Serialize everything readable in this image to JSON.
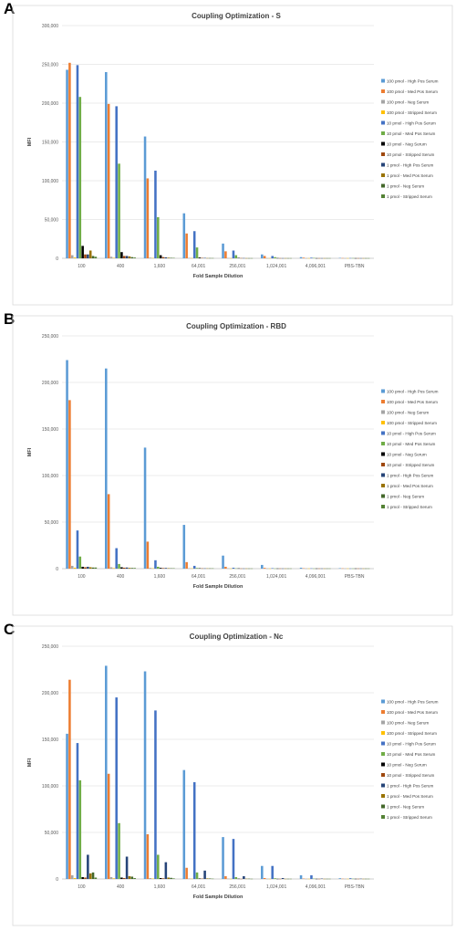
{
  "panels": [
    {
      "letter": "A",
      "chart_data": {
        "type": "bar",
        "title": "Coupling Optimization - S",
        "xlabel": "Fold Sample Dilution",
        "ylabel": "MFI",
        "ylim": [
          0,
          300000
        ],
        "ytick_labels": [
          "0",
          "50,000",
          "100,000",
          "150,000",
          "200,000",
          "250,000",
          "300,000"
        ],
        "grid": true,
        "legend_position": "right",
        "categories": [
          "100",
          "400",
          "1,600",
          "64,001",
          "256,001",
          "1,024,001",
          "4,096,001",
          "PBS-TBN"
        ],
        "series": [
          {
            "name": "100 pmol - High Pos Serum",
            "color": "#5b9bd5",
            "values": [
              243000,
              240000,
              157000,
              58000,
              19000,
              5000,
              1500,
              500
            ]
          },
          {
            "name": "100 pmol - Med Pos Serum",
            "color": "#ed7d31",
            "values": [
              252000,
              199000,
              103000,
              32000,
              9000,
              3000,
              800,
              300
            ]
          },
          {
            "name": "100 pmol - Neg Serum",
            "color": "#a5a5a5",
            "values": [
              4000,
              2000,
              800,
              400,
              300,
              200,
              200,
              200
            ]
          },
          {
            "name": "100 pmol - Stripped Serum",
            "color": "#ffc000",
            "values": [
              1000,
              600,
              400,
              300,
              200,
              200,
              200,
              200
            ]
          },
          {
            "name": "10 pmol - High Pos Serum",
            "color": "#4472c4",
            "values": [
              249000,
              196000,
              113000,
              35000,
              10000,
              3000,
              800,
              300
            ]
          },
          {
            "name": "10 pmol - Med Pos Serum",
            "color": "#70ad47",
            "values": [
              208000,
              122000,
              53000,
              14000,
              4000,
              1500,
              500,
              300
            ]
          },
          {
            "name": "10 pmol - Neg Serum",
            "color": "#000000",
            "values": [
              16000,
              8000,
              4000,
              1000,
              500,
              300,
              200,
              200
            ]
          },
          {
            "name": "10 pmol - Stripped Serum",
            "color": "#9e480e",
            "values": [
              5000,
              3000,
              1500,
              500,
              300,
              200,
              200,
              200
            ]
          },
          {
            "name": "1 pmol - High Pos Serum",
            "color": "#264478",
            "values": [
              5000,
              3000,
              1200,
              500,
              300,
              200,
              200,
              200
            ]
          },
          {
            "name": "1 pmol - Med Pos Serum",
            "color": "#997300",
            "values": [
              10000,
              2500,
              800,
              300,
              200,
              200,
              200,
              200
            ]
          },
          {
            "name": "1 pmol - Neg Serum",
            "color": "#43682b",
            "values": [
              3000,
              1500,
              600,
              300,
              200,
              200,
              200,
              200
            ]
          },
          {
            "name": "1 pmol - Stripped Serum",
            "color": "#548235",
            "values": [
              2000,
              1000,
              500,
              300,
              200,
              200,
              200,
              200
            ]
          }
        ]
      }
    },
    {
      "letter": "B",
      "chart_data": {
        "type": "bar",
        "title": "Coupling Optimization - RBD",
        "xlabel": "Fold Sample Dilution",
        "ylabel": "MFI",
        "ylim": [
          0,
          250000
        ],
        "ytick_labels": [
          "0",
          "50,000",
          "100,000",
          "150,000",
          "200,000",
          "250,000"
        ],
        "grid": true,
        "legend_position": "right",
        "categories": [
          "100",
          "400",
          "1,600",
          "64,001",
          "256,001",
          "1,024,001",
          "4,096,001",
          "PBS-TBN"
        ],
        "series": [
          {
            "name": "100 pmol - High Pos Serum",
            "color": "#5b9bd5",
            "values": [
              224000,
              215000,
              130000,
              47000,
              14000,
              4000,
              1000,
              500
            ]
          },
          {
            "name": "100 pmol - Med Pos Serum",
            "color": "#ed7d31",
            "values": [
              181000,
              80000,
              29000,
              7000,
              2000,
              800,
              400,
              300
            ]
          },
          {
            "name": "100 pmol - Neg Serum",
            "color": "#a5a5a5",
            "values": [
              3000,
              1500,
              800,
              400,
              300,
              200,
              200,
              200
            ]
          },
          {
            "name": "100 pmol - Stripped Serum",
            "color": "#ffc000",
            "values": [
              1000,
              600,
              400,
              300,
              200,
              200,
              200,
              200
            ]
          },
          {
            "name": "10 pmol - High Pos Serum",
            "color": "#4472c4",
            "values": [
              41000,
              22000,
              9000,
              3000,
              1000,
              500,
              300,
              200
            ]
          },
          {
            "name": "10 pmol - Med Pos Serum",
            "color": "#70ad47",
            "values": [
              13000,
              5000,
              2000,
              700,
              300,
              200,
              200,
              200
            ]
          },
          {
            "name": "10 pmol - Neg Serum",
            "color": "#000000",
            "values": [
              2000,
              1500,
              800,
              400,
              300,
              200,
              200,
              200
            ]
          },
          {
            "name": "10 pmol - Stripped Serum",
            "color": "#9e480e",
            "values": [
              1500,
              1000,
              600,
              300,
              200,
              200,
              200,
              200
            ]
          },
          {
            "name": "1 pmol - High Pos Serum",
            "color": "#264478",
            "values": [
              2000,
              1200,
              700,
              300,
              200,
              200,
              200,
              200
            ]
          },
          {
            "name": "1 pmol - Med Pos Serum",
            "color": "#997300",
            "values": [
              1500,
              800,
              500,
              300,
              200,
              200,
              200,
              200
            ]
          },
          {
            "name": "1 pmol - Neg Serum",
            "color": "#43682b",
            "values": [
              1200,
              700,
              400,
              300,
              200,
              200,
              200,
              200
            ]
          },
          {
            "name": "1 pmol - Stripped Serum",
            "color": "#548235",
            "values": [
              1200,
              700,
              400,
              300,
              200,
              200,
              200,
              200
            ]
          }
        ]
      }
    },
    {
      "letter": "C",
      "chart_data": {
        "type": "bar",
        "title": "Coupling Optimization - Nc",
        "xlabel": "Fold Sample Dilution",
        "ylabel": "MFI",
        "ylim": [
          0,
          250000
        ],
        "ytick_labels": [
          "0",
          "50,000",
          "100,000",
          "150,000",
          "200,000",
          "250,000"
        ],
        "grid": true,
        "legend_position": "right",
        "categories": [
          "100",
          "400",
          "1,600",
          "64,001",
          "256,001",
          "1,024,001",
          "4,096,001",
          "PBS-TBN"
        ],
        "series": [
          {
            "name": "100 pmol - High Pos Serum",
            "color": "#5b9bd5",
            "values": [
              156000,
              229000,
              223000,
              117000,
              45000,
              14000,
              4000,
              800
            ]
          },
          {
            "name": "100 pmol - Med Pos Serum",
            "color": "#ed7d31",
            "values": [
              214000,
              113000,
              48000,
              12000,
              3000,
              1000,
              400,
              300
            ]
          },
          {
            "name": "100 pmol - Neg Serum",
            "color": "#a5a5a5",
            "values": [
              4000,
              2000,
              1000,
              500,
              300,
              200,
              200,
              200
            ]
          },
          {
            "name": "100 pmol - Stripped Serum",
            "color": "#ffc000",
            "values": [
              1000,
              700,
              500,
              300,
              200,
              200,
              200,
              200
            ]
          },
          {
            "name": "10 pmol - High Pos Serum",
            "color": "#4472c4",
            "values": [
              146000,
              195000,
              181000,
              104000,
              43000,
              14000,
              4000,
              800
            ]
          },
          {
            "name": "10 pmol - Med Pos Serum",
            "color": "#70ad47",
            "values": [
              106000,
              60000,
              26000,
              7000,
              2000,
              800,
              400,
              300
            ]
          },
          {
            "name": "10 pmol - Neg Serum",
            "color": "#000000",
            "values": [
              2000,
              1500,
              1000,
              500,
              300,
              200,
              200,
              200
            ]
          },
          {
            "name": "10 pmol - Stripped Serum",
            "color": "#9e480e",
            "values": [
              1500,
              1000,
              700,
              400,
              200,
              200,
              200,
              200
            ]
          },
          {
            "name": "1 pmol - High Pos Serum",
            "color": "#264478",
            "values": [
              26000,
              24000,
              18000,
              9000,
              3000,
              1000,
              400,
              300
            ]
          },
          {
            "name": "1 pmol - Med Pos Serum",
            "color": "#997300",
            "values": [
              6000,
              3000,
              1500,
              600,
              300,
              200,
              200,
              200
            ]
          },
          {
            "name": "1 pmol - Neg Serum",
            "color": "#43682b",
            "values": [
              7000,
              2500,
              1200,
              500,
              300,
              200,
              200,
              200
            ]
          },
          {
            "name": "1 pmol - Stripped Serum",
            "color": "#548235",
            "values": [
              1500,
              1000,
              600,
              300,
              200,
              200,
              200,
              200
            ]
          }
        ]
      }
    }
  ]
}
